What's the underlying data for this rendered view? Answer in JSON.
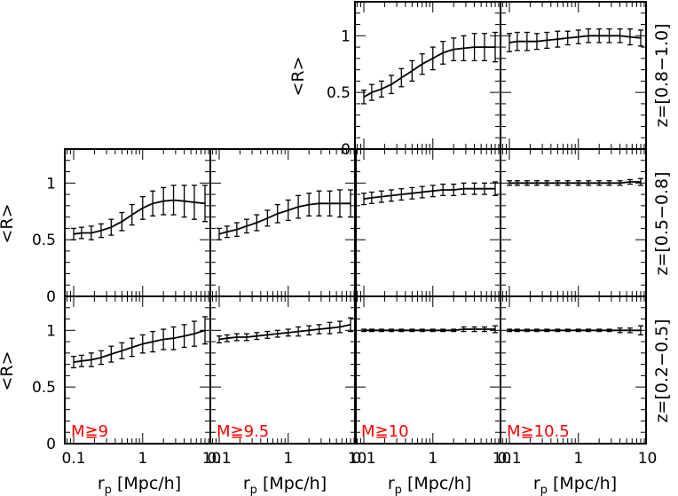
{
  "figure": {
    "background": "#ffffff",
    "axis_color": "#000000",
    "label_color": "#ff0000",
    "xlabel": "r",
    "xlabel_sub": "p",
    "xlabel_units": "[Mpc/h]",
    "ylabel": "<R>",
    "row_labels": [
      "z=[0.8−1.0]",
      "z=[0.5−0.8]",
      "z=[0.2−0.5]"
    ],
    "column_labels": [
      "M≧9",
      "M≧9.5",
      "M≧10",
      "M≧10.5"
    ],
    "x_tick_labels": [
      "0.1",
      "1",
      "10"
    ],
    "y_tick_labels": [
      "0",
      "0.5",
      "1"
    ]
  },
  "chart_data": {
    "type": "line",
    "layout": "3 rows x 4 columns; top row has only the two right panels",
    "xscale": "log",
    "xlim": [
      0.065,
      15
    ],
    "ylim": [
      0,
      1.3
    ],
    "grid": false,
    "x": [
      0.1,
      0.13,
      0.18,
      0.25,
      0.35,
      0.5,
      0.7,
      1.0,
      1.4,
      2.0,
      2.8,
      4.0,
      5.6,
      8.0
    ],
    "panels": [
      {
        "row": 0,
        "col": 2,
        "mass_label": "",
        "z_label": "z=[0.8−1.0]",
        "y": [
          0.46,
          0.5,
          0.53,
          0.57,
          0.63,
          0.69,
          0.75,
          0.8,
          0.85,
          0.88,
          0.89,
          0.9,
          0.9,
          0.9
        ],
        "err": [
          0.06,
          0.07,
          0.07,
          0.08,
          0.08,
          0.09,
          0.09,
          0.1,
          0.1,
          0.1,
          0.11,
          0.12,
          0.12,
          0.13
        ]
      },
      {
        "row": 0,
        "col": 3,
        "mass_label": "",
        "z_label": "z=[0.8−1.0]",
        "y": [
          0.94,
          0.95,
          0.95,
          0.95,
          0.96,
          0.97,
          0.98,
          0.99,
          1.0,
          1.0,
          1.0,
          1.0,
          0.99,
          0.98
        ],
        "err": [
          0.08,
          0.08,
          0.08,
          0.07,
          0.07,
          0.07,
          0.06,
          0.06,
          0.06,
          0.06,
          0.06,
          0.06,
          0.07,
          0.07
        ]
      },
      {
        "row": 1,
        "col": 0,
        "mass_label": "",
        "z_label": "z=[0.5−0.8]",
        "y": [
          0.55,
          0.56,
          0.56,
          0.58,
          0.61,
          0.66,
          0.72,
          0.78,
          0.82,
          0.84,
          0.85,
          0.84,
          0.83,
          0.82
        ],
        "err": [
          0.05,
          0.05,
          0.06,
          0.06,
          0.07,
          0.08,
          0.09,
          0.1,
          0.11,
          0.12,
          0.13,
          0.14,
          0.15,
          0.16
        ]
      },
      {
        "row": 1,
        "col": 1,
        "mass_label": "",
        "z_label": "z=[0.5−0.8]",
        "y": [
          0.55,
          0.57,
          0.59,
          0.62,
          0.65,
          0.69,
          0.73,
          0.76,
          0.79,
          0.81,
          0.82,
          0.82,
          0.82,
          0.82
        ],
        "err": [
          0.05,
          0.05,
          0.06,
          0.06,
          0.07,
          0.07,
          0.08,
          0.09,
          0.1,
          0.1,
          0.11,
          0.11,
          0.12,
          0.12
        ]
      },
      {
        "row": 1,
        "col": 2,
        "mass_label": "",
        "z_label": "z=[0.5−0.8]",
        "y": [
          0.86,
          0.87,
          0.88,
          0.89,
          0.9,
          0.91,
          0.92,
          0.93,
          0.94,
          0.94,
          0.95,
          0.95,
          0.95,
          0.95
        ],
        "err": [
          0.05,
          0.05,
          0.05,
          0.05,
          0.05,
          0.05,
          0.05,
          0.05,
          0.05,
          0.05,
          0.05,
          0.05,
          0.05,
          0.06
        ]
      },
      {
        "row": 1,
        "col": 3,
        "mass_label": "",
        "z_label": "z=[0.5−0.8]",
        "y": [
          1.0,
          1.0,
          1.0,
          1.0,
          1.0,
          1.0,
          1.0,
          1.0,
          1.0,
          1.0,
          1.0,
          1.0,
          1.01,
          1.01
        ],
        "err": [
          0.02,
          0.02,
          0.02,
          0.02,
          0.02,
          0.02,
          0.02,
          0.02,
          0.02,
          0.02,
          0.02,
          0.02,
          0.02,
          0.03
        ]
      },
      {
        "row": 2,
        "col": 0,
        "mass_label": "M≧9",
        "z_label": "z=[0.2−0.5]",
        "y": [
          0.72,
          0.73,
          0.74,
          0.76,
          0.79,
          0.82,
          0.85,
          0.88,
          0.9,
          0.92,
          0.93,
          0.95,
          0.97,
          1.0
        ],
        "err": [
          0.05,
          0.05,
          0.06,
          0.06,
          0.07,
          0.07,
          0.08,
          0.08,
          0.09,
          0.09,
          0.1,
          0.1,
          0.11,
          0.12
        ]
      },
      {
        "row": 2,
        "col": 1,
        "mass_label": "M≧9.5",
        "z_label": "z=[0.2−0.5]",
        "y": [
          0.92,
          0.93,
          0.94,
          0.94,
          0.95,
          0.96,
          0.97,
          0.98,
          0.99,
          1.0,
          1.01,
          1.02,
          1.03,
          1.05
        ],
        "err": [
          0.03,
          0.03,
          0.03,
          0.03,
          0.03,
          0.03,
          0.03,
          0.03,
          0.04,
          0.04,
          0.04,
          0.05,
          0.05,
          0.06
        ]
      },
      {
        "row": 2,
        "col": 2,
        "mass_label": "M≧10",
        "z_label": "z=[0.2−0.5]",
        "y": [
          1.0,
          1.0,
          1.0,
          1.0,
          1.0,
          1.0,
          1.0,
          1.0,
          1.0,
          1.0,
          1.01,
          1.01,
          1.01,
          1.01
        ],
        "err": [
          0.01,
          0.01,
          0.01,
          0.01,
          0.01,
          0.01,
          0.01,
          0.01,
          0.01,
          0.01,
          0.02,
          0.02,
          0.02,
          0.03
        ]
      },
      {
        "row": 2,
        "col": 3,
        "mass_label": "M≧10.5",
        "z_label": "z=[0.2−0.5]",
        "y": [
          1.0,
          1.0,
          1.0,
          1.0,
          1.0,
          1.0,
          1.0,
          1.0,
          1.0,
          1.0,
          1.0,
          1.0,
          1.0,
          1.0
        ],
        "err": [
          0.01,
          0.01,
          0.01,
          0.01,
          0.01,
          0.01,
          0.01,
          0.01,
          0.01,
          0.01,
          0.01,
          0.02,
          0.02,
          0.04
        ]
      }
    ]
  }
}
